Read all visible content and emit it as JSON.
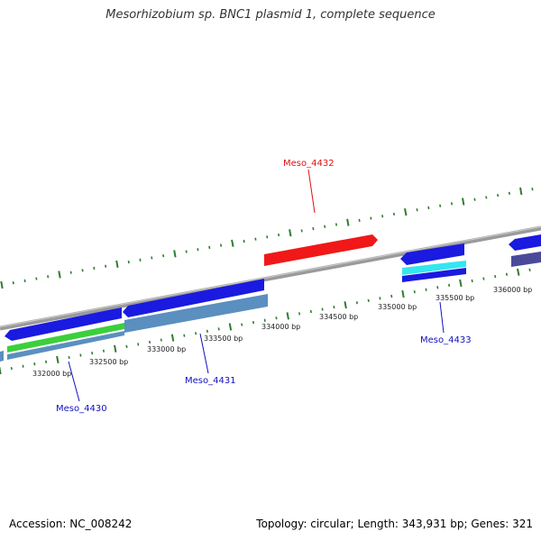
{
  "title": "Mesorhizobium sp. BNC1 plasmid 1, complete sequence",
  "footer": {
    "accession": "Accession: NC_008242",
    "stats": "Topology: circular; Length: 343,931 bp; Genes: 321"
  },
  "colors": {
    "backbone": "#8a8a8a",
    "tick": "#2f7d2f",
    "gene_blue": "#1a1ae0",
    "gene_red": "#f01818",
    "gene_green": "#3ccf3c",
    "gene_steel": "#5a8fc0",
    "gene_cyan": "#33e6f0",
    "gene_slate": "#4a4a9a",
    "label_red": "#e01010",
    "label_blue": "#1010c0"
  },
  "scale": {
    "ticks": [
      {
        "position": 332000,
        "label": "332000 bp"
      },
      {
        "position": 332500,
        "label": "332500 bp"
      },
      {
        "position": 333000,
        "label": "333000 bp"
      },
      {
        "position": 333500,
        "label": "333500 bp"
      },
      {
        "position": 334000,
        "label": "334000 bp"
      },
      {
        "position": 334500,
        "label": "334500 bp"
      },
      {
        "position": 335000,
        "label": "335000 bp"
      },
      {
        "position": 335500,
        "label": "335500 bp"
      },
      {
        "position": 336000,
        "label": "336000 bp"
      }
    ]
  },
  "gene_labels": [
    {
      "id": "Meso_4430",
      "label": "Meso_4430",
      "color": "#1010c0"
    },
    {
      "id": "Meso_4431",
      "label": "Meso_4431",
      "color": "#1010c0"
    },
    {
      "id": "Meso_4432",
      "label": "Meso_4432",
      "color": "#e01010"
    },
    {
      "id": "Meso_4433",
      "label": "Meso_4433",
      "color": "#1010c0"
    }
  ]
}
